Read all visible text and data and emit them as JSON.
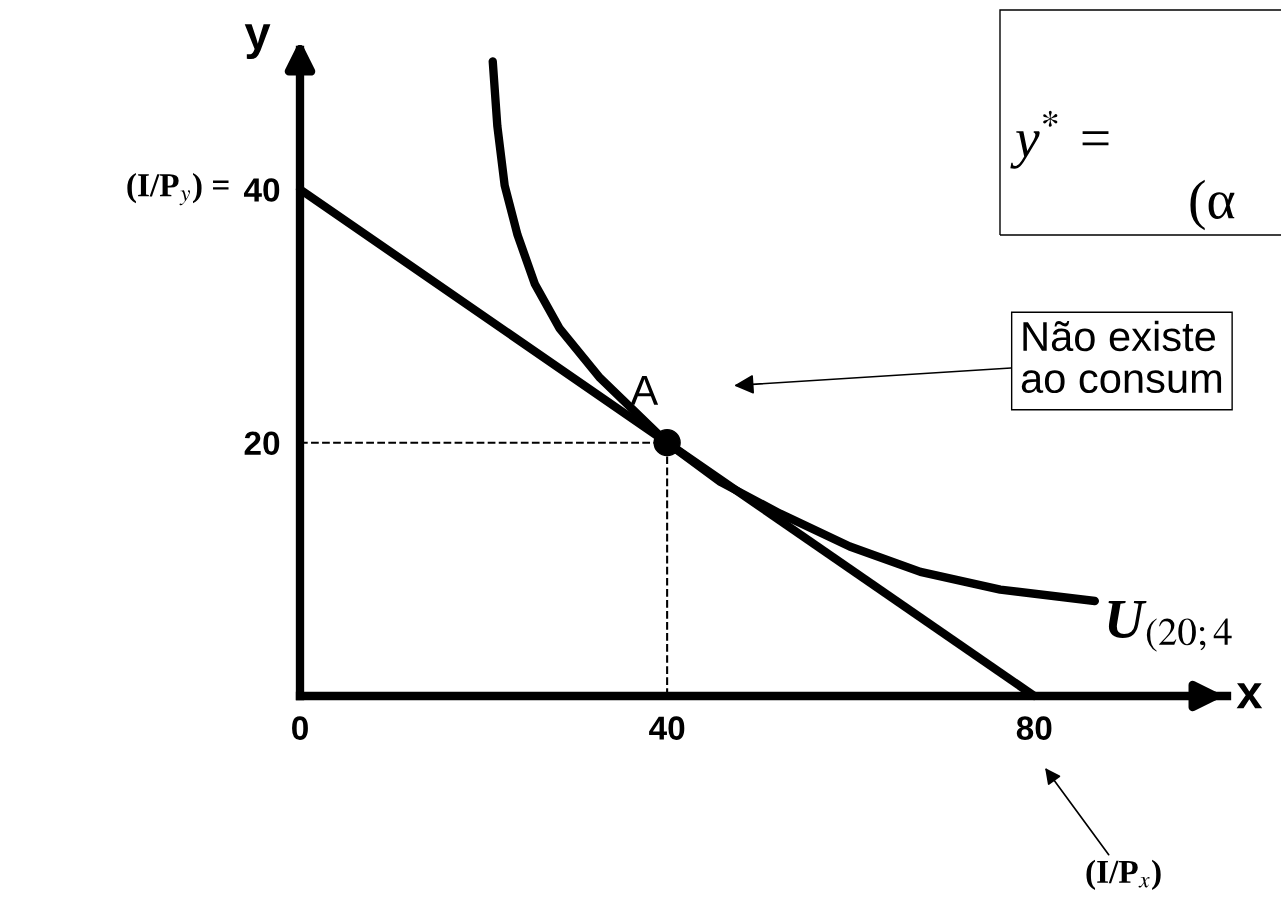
{
  "chart_data": {
    "type": "line",
    "xlabel": "x",
    "ylabel": "y",
    "xlim": [
      0,
      101
    ],
    "ylim": [
      0,
      51
    ],
    "xticks": [
      0,
      40,
      80
    ],
    "yticks": [
      20,
      40
    ],
    "grid": false,
    "series": [
      {
        "color": "#000000",
        "x": [
          0,
          80
        ],
        "values": [
          40,
          0
        ]
      },
      {
        "color": "#000000",
        "x": [
          21.0,
          21.5,
          22.3,
          23.7,
          25.6,
          28.3,
          32.7,
          40,
          45.8,
          52.3,
          59.9,
          67.6,
          76.3,
          86.6
        ],
        "values": [
          50.1,
          45.0,
          40.3,
          36.4,
          32.5,
          29.0,
          25.1,
          20,
          16.9,
          14.4,
          11.8,
          9.8,
          8.4,
          7.5
        ]
      },
      {
        "color": "#000000",
        "line_style": "dashed",
        "x": [
          0,
          40
        ],
        "values": [
          20,
          20
        ]
      },
      {
        "color": "#000000",
        "line_style": "dashed",
        "x": [
          40,
          40
        ],
        "values": [
          0,
          20
        ]
      },
      {
        "type": "scatter",
        "color": "#000000",
        "x": [
          40
        ],
        "values": [
          20
        ]
      }
    ],
    "annotations": [
      {
        "text": "A",
        "x": 40,
        "y": 20
      },
      "Não existe\nao consum",
      {
        "text": "U$_{(20;4}$",
        "x": 86.6,
        "y": 7.5
      },
      {
        "text": "(I/P$_{y}$) =",
        "x": 0,
        "y": 40
      },
      "(I/P$_{x}$)",
      "y$^{*}$ =",
      "(α"
    ]
  }
}
